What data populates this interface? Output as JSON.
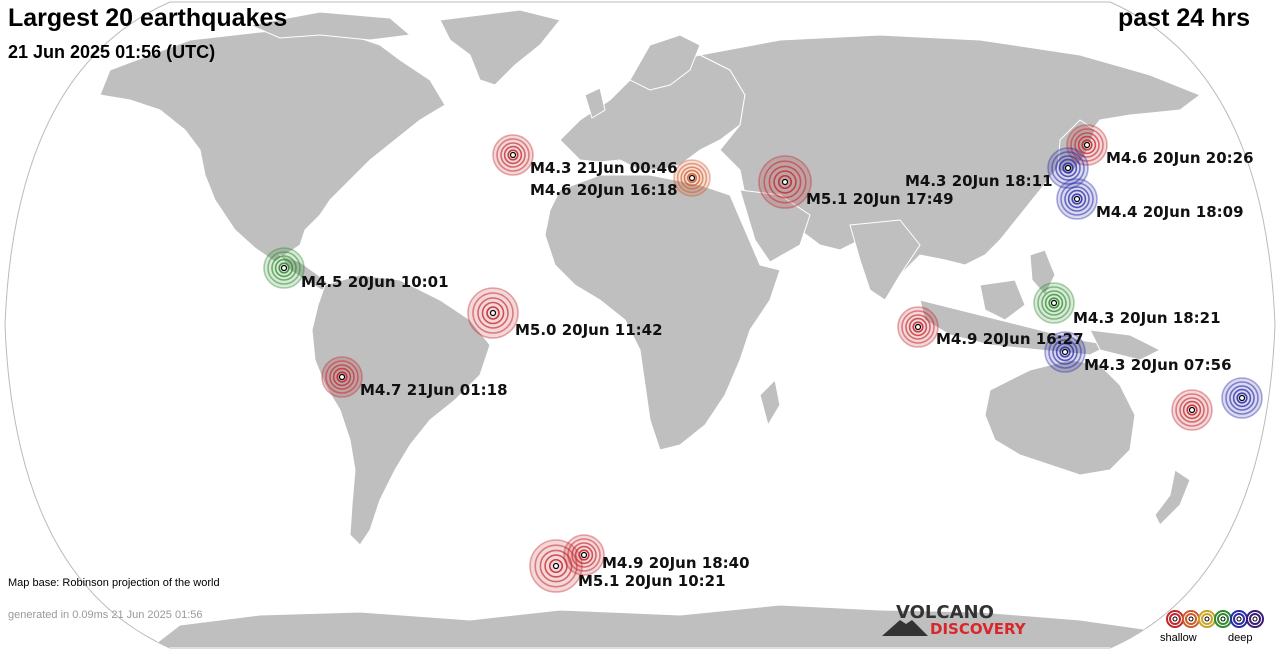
{
  "header": {
    "title": "Largest 20 earthquakes",
    "date": "21 Jun 2025 01:56 (UTC)",
    "period": "past 24 hrs"
  },
  "footer": {
    "credit": "Map base: Robinson projection of the world",
    "generated": "generated in 0.09ms 21 Jun 2025 01:56"
  },
  "logo": {
    "line1": "VOLCANO",
    "line2": "DISCOVERY"
  },
  "legend": {
    "shallow": "shallow",
    "deep": "deep",
    "depth_colors": [
      "#c0272d",
      "#d05a28",
      "#c9a227",
      "#2e8b2e",
      "#2a2aa8",
      "#3a1c78"
    ]
  },
  "colors": {
    "ocean": "#ffffff",
    "land": "#bfbfbf",
    "shallow": "#c0272d",
    "intermediate": "#d05a28",
    "medium": "#2e8b2e",
    "deep": "#2a2aa8"
  },
  "earthquakes": [
    {
      "id": "mid-atlantic-north",
      "label": "M4.3 21Jun 00:46",
      "depth": "shallow"
    },
    {
      "id": "greece",
      "label": "M4.6 20Jun 16:18",
      "depth": "intermediate"
    },
    {
      "id": "iran",
      "label": "M5.1 20Jun 17:49",
      "depth": "shallow"
    },
    {
      "id": "japan-north",
      "label": "M4.6 20Jun 20:26",
      "depth": "shallow"
    },
    {
      "id": "japan-mid",
      "label": "M4.3 20Jun 18:11",
      "depth": "deep"
    },
    {
      "id": "japan-south",
      "label": "M4.4 20Jun 18:09",
      "depth": "deep"
    },
    {
      "id": "central-america",
      "label": "M4.5 20Jun 10:01",
      "depth": "medium"
    },
    {
      "id": "mid-atlantic-equator",
      "label": "M5.0 20Jun 11:42",
      "depth": "shallow"
    },
    {
      "id": "indonesia-sumatra",
      "label": "M4.9 20Jun 16:27",
      "depth": "shallow"
    },
    {
      "id": "philippines",
      "label": "M4.3 20Jun 18:21",
      "depth": "medium"
    },
    {
      "id": "moluccas",
      "label": "M4.3 20Jun 07:56",
      "depth": "deep"
    },
    {
      "id": "peru",
      "label": "M4.7 21Jun 01:18",
      "depth": "shallow"
    },
    {
      "id": "south-sandwich-north",
      "label": "M4.9 20Jun 18:40",
      "depth": "shallow"
    },
    {
      "id": "south-sandwich-south",
      "label": "M5.1 20Jun 10:21",
      "depth": "shallow"
    },
    {
      "id": "vanuatu",
      "label": "",
      "depth": "shallow"
    },
    {
      "id": "fiji",
      "label": "",
      "depth": "deep"
    }
  ]
}
